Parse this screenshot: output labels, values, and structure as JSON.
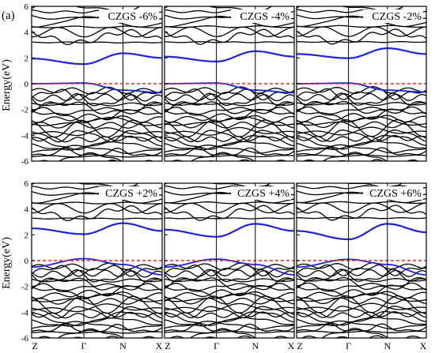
{
  "figure_label": "(a)",
  "ylabel": "Energy(eV)",
  "y_ticks": [
    "6",
    "4",
    "2",
    "0",
    "-2",
    "-4",
    "-6"
  ],
  "k_points": [
    "Z",
    "Γ",
    "N",
    "X"
  ],
  "colors": {
    "bands": "#000000",
    "highlight_band": "#1f22d6",
    "fermi_line": "#e8281e"
  },
  "chart_data": [
    {
      "type": "line",
      "title": "CZGS -6%",
      "ylim": [
        -6,
        6
      ],
      "x": [
        "Z",
        "Γ",
        "N",
        "X"
      ],
      "fermi_level": 0,
      "series": [
        {
          "values": [
            1.95,
            1.52,
            2.36,
            2.0
          ]
        },
        {
          "values": [
            0.0,
            0.05,
            -0.5,
            -0.7
          ]
        }
      ]
    },
    {
      "type": "line",
      "title": "CZGS -4%",
      "ylim": [
        -6,
        6
      ],
      "x": [
        "Z",
        "Γ",
        "N",
        "X"
      ],
      "fermi_level": 0,
      "series": [
        {
          "values": [
            2.1,
            1.72,
            2.52,
            2.1
          ]
        },
        {
          "values": [
            0.0,
            0.05,
            -0.5,
            -0.7
          ]
        }
      ]
    },
    {
      "type": "line",
      "title": "CZGS -2%",
      "ylim": [
        -6,
        6
      ],
      "x": [
        "Z",
        "Γ",
        "N",
        "X"
      ],
      "fermi_level": 0,
      "series": [
        {
          "values": [
            2.3,
            1.98,
            2.75,
            2.3
          ]
        },
        {
          "values": [
            0.0,
            0.05,
            -0.5,
            -0.65
          ]
        }
      ]
    },
    {
      "type": "line",
      "title": "CZGS +2%",
      "ylim": [
        -6,
        6
      ],
      "x": [
        "Z",
        "Γ",
        "N",
        "X"
      ],
      "fermi_level": 0,
      "series": [
        {
          "values": [
            2.5,
            2.05,
            2.9,
            2.3
          ]
        },
        {
          "values": [
            -0.5,
            0.15,
            -0.3,
            -1.1
          ]
        }
      ]
    },
    {
      "type": "line",
      "title": "CZGS +4%",
      "ylim": [
        -6,
        6
      ],
      "x": [
        "Z",
        "Γ",
        "N",
        "X"
      ],
      "fermi_level": 0,
      "series": [
        {
          "values": [
            2.4,
            1.85,
            2.85,
            2.3
          ]
        },
        {
          "values": [
            -0.5,
            0.12,
            -0.3,
            -1.1
          ]
        }
      ]
    },
    {
      "type": "line",
      "title": "CZGS +6%",
      "ylim": [
        -6,
        6
      ],
      "x": [
        "Z",
        "Γ",
        "N",
        "X"
      ],
      "fermi_level": 0,
      "series": [
        {
          "values": [
            2.3,
            1.65,
            2.85,
            2.2
          ]
        },
        {
          "values": [
            -0.5,
            0.1,
            -0.3,
            -1.1
          ]
        }
      ]
    }
  ]
}
